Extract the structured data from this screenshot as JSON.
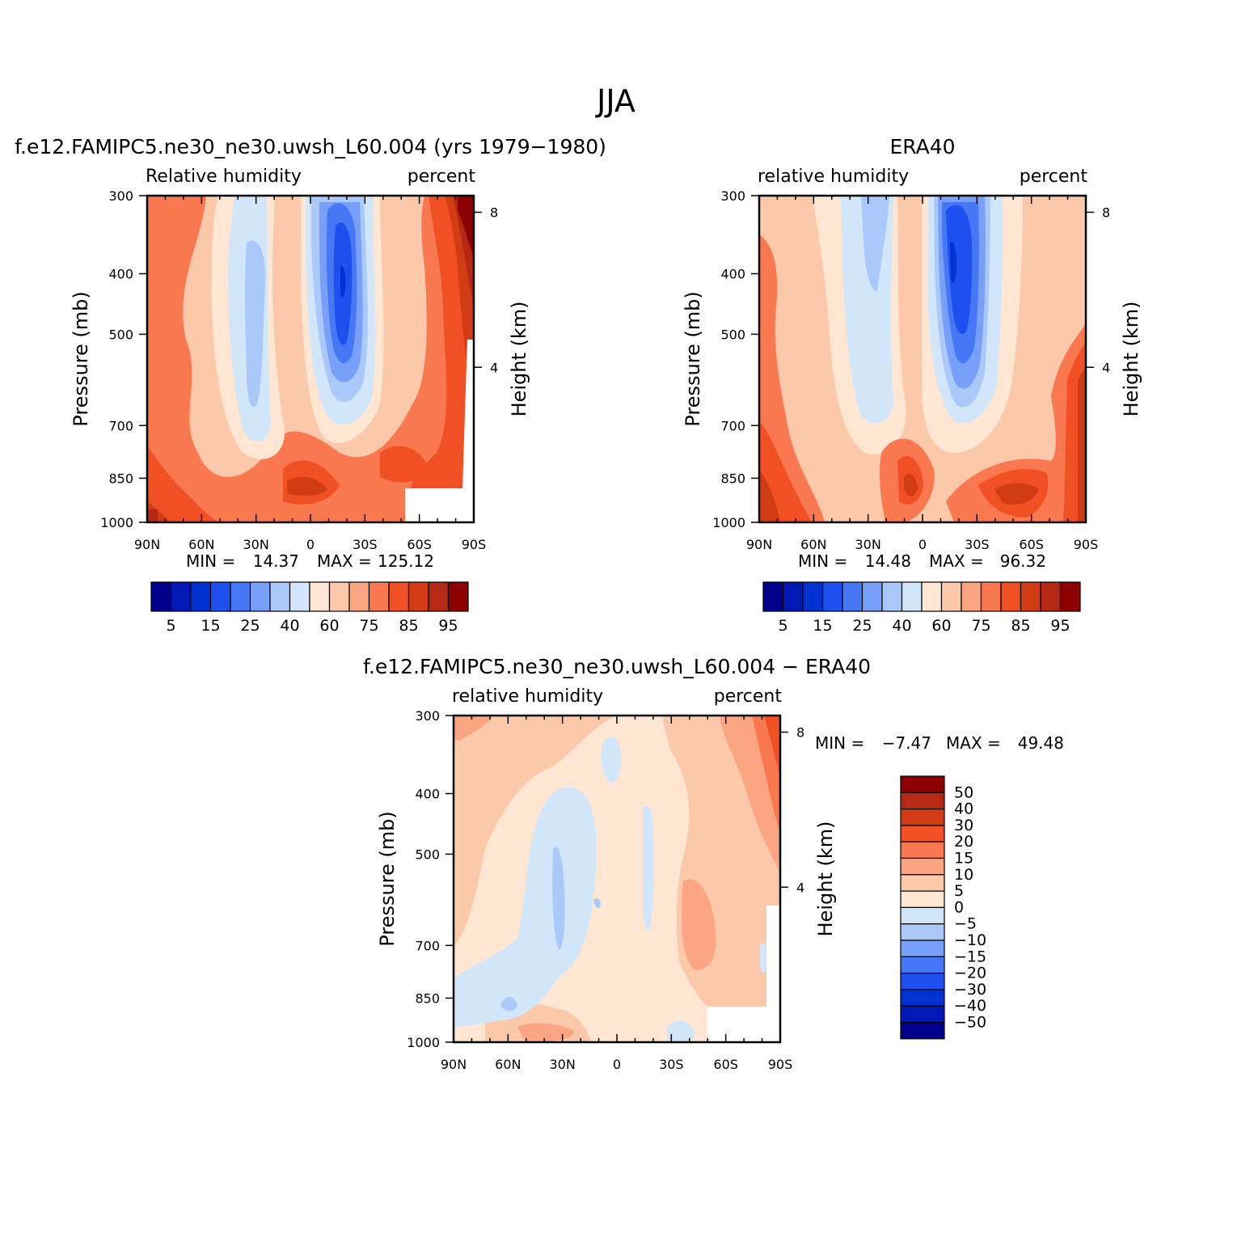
{
  "figure": {
    "title": "JJA"
  },
  "chart_data": [
    {
      "type": "heatmap",
      "title": "f.e12.FAMIPC5.ne30_ne30.uwsh_L60.004 (yrs 1979−1980)",
      "left_label": "Relative humidity",
      "right_label": "percent",
      "ylabel": "Pressure (mb)",
      "y2label": "Height (km)",
      "x_ticks": [
        "90N",
        "60N",
        "30N",
        "0",
        "30S",
        "60S",
        "90S"
      ],
      "y_ticks": [
        300,
        400,
        500,
        700,
        850,
        1000
      ],
      "y2_ticks": [
        8,
        4
      ],
      "ylim": [
        1000,
        300
      ],
      "xlim": [
        "90N",
        "90S"
      ],
      "min_label": "MIN =",
      "min_value": "14.37",
      "max_label": "MAX =",
      "max_value": "125.12",
      "colorbar": {
        "orientation": "horizontal",
        "labels": [
          "5",
          "15",
          "25",
          "40",
          "60",
          "75",
          "85",
          "95"
        ],
        "colors": [
          "#00008c",
          "#0019b4",
          "#0032d2",
          "#1e50f0",
          "#4678f5",
          "#78a0fa",
          "#aac8fa",
          "#d2e6fa",
          "#ffe6d2",
          "#fcc8aa",
          "#fca582",
          "#fa7850",
          "#f05023",
          "#d23c14",
          "#b42814",
          "#8c0000"
        ]
      }
    },
    {
      "type": "heatmap",
      "title": "ERA40",
      "left_label": "relative humidity",
      "right_label": "percent",
      "ylabel": "Pressure (mb)",
      "y2label": "Height (km)",
      "x_ticks": [
        "90N",
        "60N",
        "30N",
        "0",
        "30S",
        "60S",
        "90S"
      ],
      "y_ticks": [
        300,
        400,
        500,
        700,
        850,
        1000
      ],
      "y2_ticks": [
        8,
        4
      ],
      "ylim": [
        1000,
        300
      ],
      "xlim": [
        "90N",
        "90S"
      ],
      "min_label": "MIN =",
      "min_value": "14.48",
      "max_label": "MAX =",
      "max_value": "96.32",
      "colorbar": {
        "orientation": "horizontal",
        "labels": [
          "5",
          "15",
          "25",
          "40",
          "60",
          "75",
          "85",
          "95"
        ],
        "colors": [
          "#00008c",
          "#0019b4",
          "#0032d2",
          "#1e50f0",
          "#4678f5",
          "#78a0fa",
          "#aac8fa",
          "#d2e6fa",
          "#ffe6d2",
          "#fcc8aa",
          "#fca582",
          "#fa7850",
          "#f05023",
          "#d23c14",
          "#b42814",
          "#8c0000"
        ]
      }
    },
    {
      "type": "heatmap",
      "title": "f.e12.FAMIPC5.ne30_ne30.uwsh_L60.004 − ERA40",
      "left_label": "relative humidity",
      "right_label": "percent",
      "ylabel": "Pressure (mb)",
      "y2label": "Height (km)",
      "x_ticks": [
        "90N",
        "60N",
        "30N",
        "0",
        "30S",
        "60S",
        "90S"
      ],
      "y_ticks": [
        300,
        400,
        500,
        700,
        850,
        1000
      ],
      "y2_ticks": [
        8,
        4
      ],
      "ylim": [
        1000,
        300
      ],
      "xlim": [
        "90N",
        "90S"
      ],
      "min_label": "MIN =",
      "min_value": "−7.47",
      "max_label": "MAX =",
      "max_value": "49.48",
      "colorbar": {
        "orientation": "vertical",
        "labels": [
          "50",
          "40",
          "30",
          "20",
          "15",
          "10",
          "5",
          "0",
          "−5",
          "−10",
          "−15",
          "−20",
          "−30",
          "−40",
          "−50"
        ],
        "colors": [
          "#8c0000",
          "#b42814",
          "#d23c14",
          "#f05023",
          "#fa7850",
          "#fca582",
          "#fcc8aa",
          "#ffe6d2",
          "#d2e6fa",
          "#aac8fa",
          "#78a0fa",
          "#4678f5",
          "#1e50f0",
          "#0032d2",
          "#0019b4",
          "#00008c"
        ]
      }
    }
  ]
}
